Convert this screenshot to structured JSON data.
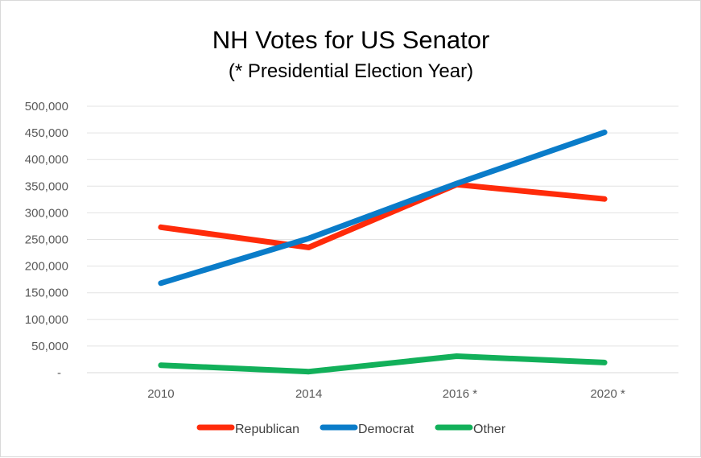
{
  "chart_data": {
    "type": "line",
    "title": "NH Votes for US Senator",
    "subtitle": "(* Presidential Election Year)",
    "xlabel": "",
    "ylabel": "",
    "categories": [
      "2010",
      "2014",
      "2016 *",
      "2020 *"
    ],
    "ylim": [
      0,
      500000
    ],
    "yticks": [
      0,
      50000,
      100000,
      150000,
      200000,
      250000,
      300000,
      350000,
      400000,
      450000,
      500000
    ],
    "ytick_labels": [
      "-",
      "50,000",
      "100,000",
      "150,000",
      "200,000",
      "250,000",
      "300,000",
      "350,000",
      "400,000",
      "450,000",
      "500,000"
    ],
    "grid": true,
    "legend_position": "bottom",
    "series": [
      {
        "name": "Republican",
        "color": "#ff2b0a",
        "values": [
          273000,
          235000,
          353000,
          326000
        ]
      },
      {
        "name": "Democrat",
        "color": "#0a7cc9",
        "values": [
          168000,
          252000,
          355000,
          451000
        ]
      },
      {
        "name": "Other",
        "color": "#12b05a",
        "values": [
          14000,
          2000,
          31000,
          19000
        ]
      }
    ]
  }
}
